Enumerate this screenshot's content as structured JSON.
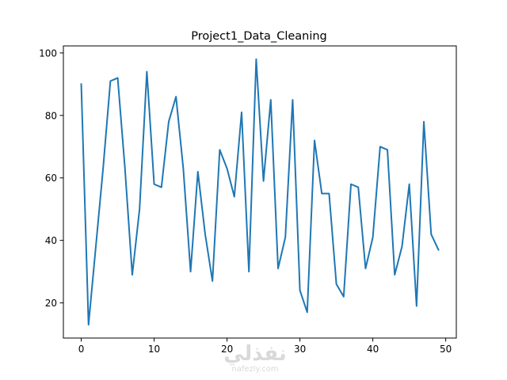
{
  "chart_data": {
    "type": "line",
    "title": "Project1_Data_Cleaning",
    "xlabel": "",
    "ylabel": "",
    "xlim": [
      -2.45,
      51.45
    ],
    "ylim": [
      8.75,
      102.25
    ],
    "x_ticks": [
      0,
      10,
      20,
      30,
      40,
      50
    ],
    "y_ticks": [
      20,
      40,
      60,
      80,
      100
    ],
    "grid": false,
    "line_color": "#1f77b4",
    "x": [
      0,
      1,
      2,
      3,
      4,
      5,
      6,
      7,
      8,
      9,
      10,
      11,
      12,
      13,
      14,
      15,
      16,
      17,
      18,
      19,
      20,
      21,
      22,
      23,
      24,
      25,
      26,
      27,
      28,
      29,
      30,
      31,
      32,
      33,
      34,
      35,
      36,
      37,
      38,
      39,
      40,
      41,
      42,
      43,
      44,
      45,
      46,
      47,
      48,
      49
    ],
    "values": [
      90,
      13,
      38,
      63,
      91,
      92,
      63,
      29,
      50,
      94,
      58,
      57,
      78,
      86,
      63,
      30,
      62,
      42,
      27,
      69,
      63,
      54,
      81,
      30,
      98,
      59,
      85,
      31,
      41,
      85,
      24,
      17,
      72,
      55,
      55,
      26,
      22,
      58,
      57,
      31,
      41,
      70,
      69,
      29,
      38,
      58,
      19,
      78,
      42,
      37
    ]
  },
  "watermark": {
    "main": "نفذلي",
    "sub": "nafezly.com"
  }
}
